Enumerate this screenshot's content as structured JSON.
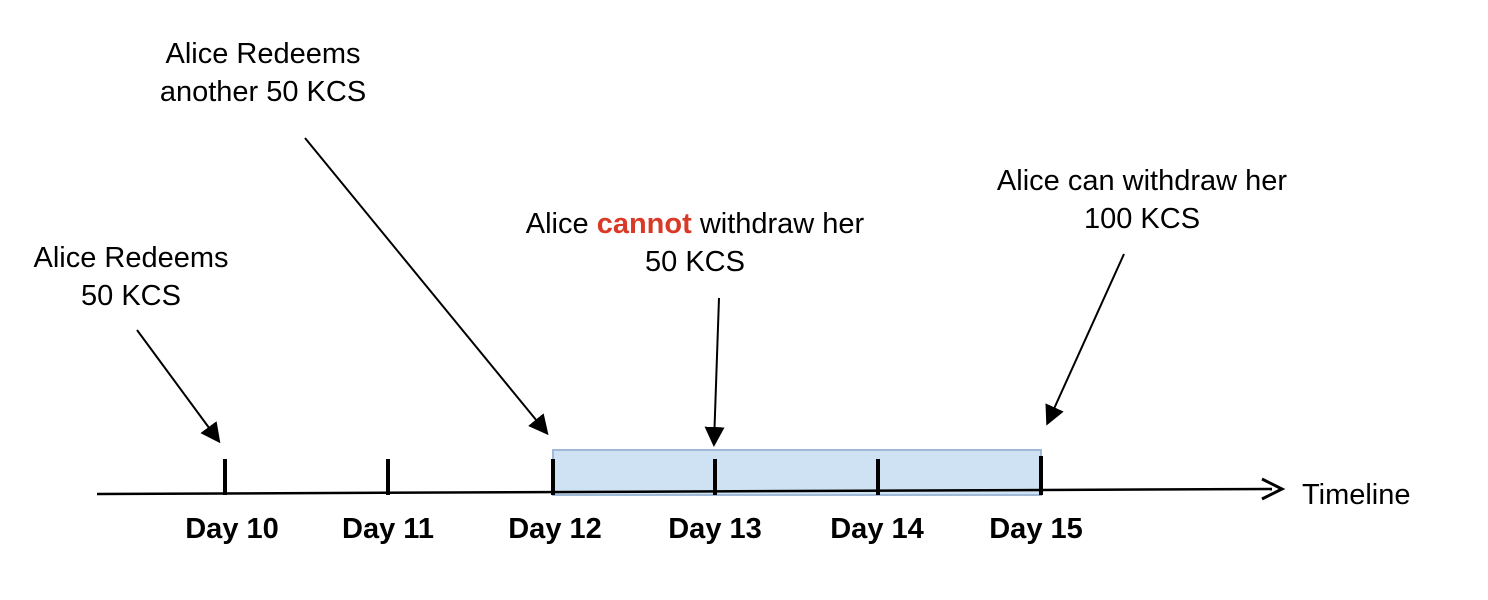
{
  "axis": {
    "label": "Timeline"
  },
  "days": [
    "Day 10",
    "Day 11",
    "Day 12",
    "Day 13",
    "Day 14",
    "Day 15"
  ],
  "annotations": {
    "redeem_first": {
      "line1": "Alice Redeems",
      "line2": "50 KCS"
    },
    "redeem_second": {
      "line1": "Alice Redeems",
      "line2": "another 50 KCS"
    },
    "cannot_withdraw": {
      "prefix": "Alice ",
      "accent": "cannot",
      "suffix": " withdraw her",
      "line2": "50 KCS"
    },
    "can_withdraw": {
      "line1": "Alice can withdraw her",
      "line2": "100 KCS"
    }
  },
  "colors": {
    "lock_period_fill": "#cfe2f3",
    "lock_period_stroke": "#9fb9d6",
    "accent": "#d93a27",
    "line": "#000000"
  }
}
